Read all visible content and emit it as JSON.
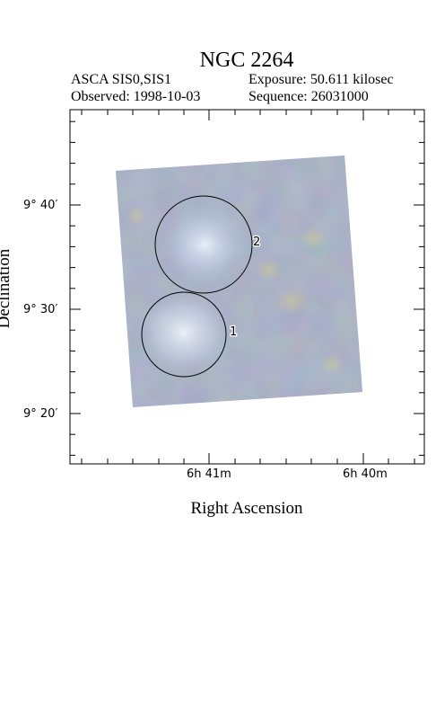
{
  "title": "NGC 2264",
  "header": {
    "instrument": "ASCA SIS0,SIS1",
    "exposure": "Exposure: 50.611 kilosec",
    "observed": "Observed: 1998-10-03",
    "sequence": "Sequence: 26031000"
  },
  "axes": {
    "xlabel": "Right Ascension",
    "ylabel": "Declination",
    "yticks": [
      "9° 40′",
      "9° 30′",
      "9° 20′"
    ],
    "xticks": [
      "6h 41m",
      "6h 40m"
    ]
  },
  "sources": [
    {
      "label": "1"
    },
    {
      "label": "2"
    }
  ],
  "colors": {
    "image_base": "#8894ad",
    "bright_region": "#dfe6f2",
    "frame": "#000000"
  }
}
